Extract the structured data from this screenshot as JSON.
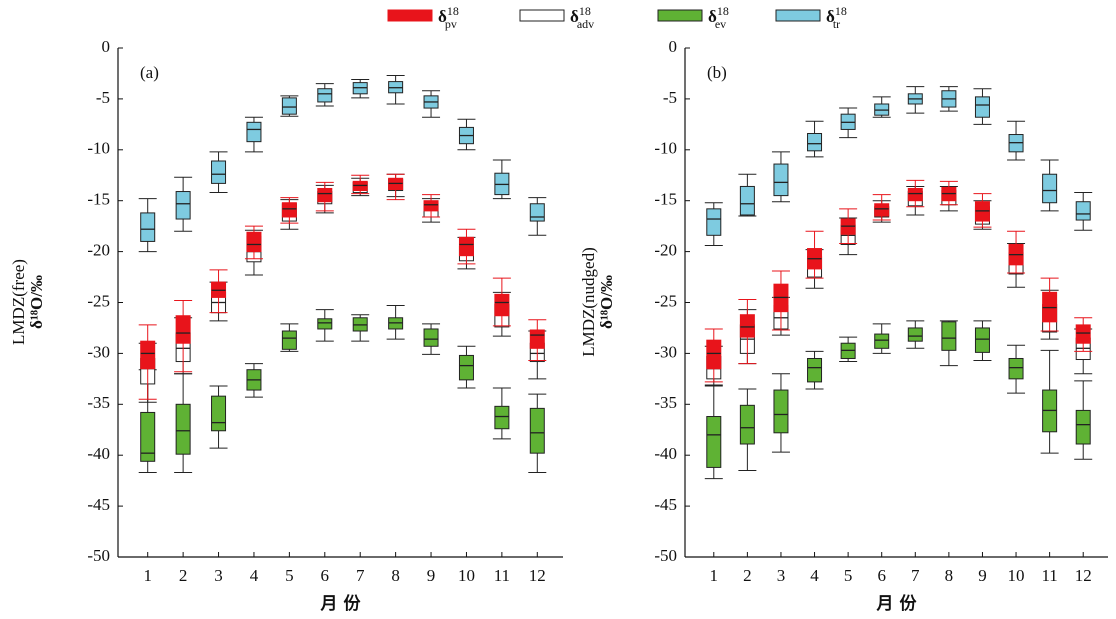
{
  "chart_data": [
    {
      "type": "box",
      "panel_label": "(a)",
      "ylabel": [
        "LMDZ(free)",
        "δ¹⁸O/‰"
      ],
      "xlabel": "月 份",
      "categories": [
        "1",
        "2",
        "3",
        "4",
        "5",
        "6",
        "7",
        "8",
        "9",
        "10",
        "11",
        "12"
      ],
      "ylim": [
        -50,
        0
      ],
      "yticks": [
        0,
        -5,
        -10,
        -15,
        -20,
        -25,
        -30,
        -35,
        -40,
        -45,
        -50
      ],
      "series": [
        {
          "name": "δ",
          "sup": "18",
          "sub": "pv",
          "color": "#e8141b",
          "edgecolor": "#e8141b",
          "whislo": [
            -34.5,
            -31.8,
            -26,
            -20.7,
            -17.2,
            -16,
            -14.3,
            -14.9,
            -16.6,
            -21.2,
            -27.3,
            -30.7
          ],
          "q1": [
            -31.5,
            -29,
            -24.5,
            -20,
            -16.6,
            -15.1,
            -14,
            -13.9,
            -16,
            -20.4,
            -26.3,
            -29.5
          ],
          "median": [
            -30,
            -28,
            -23.8,
            -19.3,
            -15.8,
            -14.3,
            -13.5,
            -13.3,
            -15.4,
            -19.3,
            -25,
            -28.2
          ],
          "q3": [
            -28.8,
            -26.3,
            -23,
            -18.1,
            -15.2,
            -13.8,
            -13.1,
            -12.8,
            -15,
            -18.6,
            -24.2,
            -27.7
          ],
          "whishi": [
            -27.2,
            -24.8,
            -21.8,
            -17.5,
            -14.7,
            -13.2,
            -12.5,
            -12.4,
            -14.4,
            -17.8,
            -22.6,
            -26.7
          ]
        },
        {
          "name": "δ",
          "sup": "18",
          "sub": "adv",
          "color": "#ffffff",
          "edgecolor": "#222222",
          "whislo": [
            -34.8,
            -32,
            -26.8,
            -22.3,
            -17.8,
            -16.2,
            -14.5,
            -14.6,
            -17.1,
            -21.7,
            -28.3,
            -32.5
          ],
          "q1": [
            -33,
            -30.8,
            -26,
            -21,
            -17,
            -15.3,
            -14.2,
            -14,
            -16.6,
            -20.9,
            -27.4,
            -30.8
          ],
          "median": [
            -31.5,
            -29.5,
            -25,
            -20,
            -16.2,
            -14.8,
            -13.8,
            -13.3,
            -15.9,
            -20.3,
            -26,
            -30
          ],
          "q3": [
            -30.5,
            -28,
            -24,
            -18.5,
            -15.3,
            -14.1,
            -13.2,
            -12.9,
            -15.3,
            -19.5,
            -25.2,
            -29
          ],
          "whishi": [
            -29,
            -26.5,
            -23,
            -17.9,
            -14.9,
            -13.5,
            -12.8,
            -12.4,
            -14.8,
            -18.6,
            -24,
            -27.8
          ]
        },
        {
          "name": "δ",
          "sup": "18",
          "sub": "ev",
          "color": "#5fb234",
          "edgecolor": "#222222",
          "whislo": [
            -41.7,
            -41.7,
            -39.3,
            -34.3,
            -29.8,
            -28.8,
            -28.8,
            -28.6,
            -30.1,
            -33.4,
            -38.4,
            -41.7
          ],
          "q1": [
            -40.6,
            -39.9,
            -37.6,
            -33.6,
            -29.6,
            -27.6,
            -27.8,
            -27.6,
            -29.3,
            -32.6,
            -37.4,
            -39.8
          ],
          "median": [
            -39.8,
            -37.6,
            -36.8,
            -32.6,
            -28.5,
            -27,
            -27.2,
            -27,
            -28.6,
            -31.2,
            -36.2,
            -37.8
          ],
          "q3": [
            -35.8,
            -35,
            -34.2,
            -31.6,
            -27.8,
            -26.6,
            -26.5,
            -26.5,
            -27.6,
            -30.2,
            -35.2,
            -35.4
          ],
          "whishi": [
            -31.6,
            -32,
            -33.2,
            -31,
            -27.1,
            -25.7,
            -26.2,
            -25.3,
            -27.1,
            -29.3,
            -33.4,
            -34
          ]
        },
        {
          "name": "δ",
          "sup": "18",
          "sub": "tr",
          "color": "#7ecbe0",
          "edgecolor": "#222222",
          "whislo": [
            -20,
            -18,
            -14.2,
            -10.2,
            -6.7,
            -5.7,
            -4.9,
            -5.5,
            -6.8,
            -10,
            -14.8,
            -18.4
          ],
          "q1": [
            -19,
            -16.8,
            -13.3,
            -9.2,
            -6.5,
            -5.3,
            -4.5,
            -4.4,
            -5.9,
            -9.4,
            -14.4,
            -17
          ],
          "median": [
            -17.8,
            -15.3,
            -12.4,
            -8,
            -5.8,
            -4.5,
            -3.9,
            -3.9,
            -5.3,
            -8.6,
            -13.4,
            -16.6
          ],
          "q3": [
            -16.2,
            -14.1,
            -11.1,
            -7.3,
            -4.9,
            -4,
            -3.4,
            -3.3,
            -4.7,
            -7.8,
            -12.3,
            -15.3
          ],
          "whishi": [
            -14.8,
            -12.7,
            -10.2,
            -6.8,
            -4.7,
            -3.5,
            -3.1,
            -2.7,
            -4.2,
            -7,
            -11,
            -14.7
          ]
        }
      ]
    },
    {
      "type": "box",
      "panel_label": "(b)",
      "ylabel": [
        "LMDZ(nudged)",
        "δ¹⁸O/‰"
      ],
      "xlabel": "月 份",
      "categories": [
        "1",
        "2",
        "3",
        "4",
        "5",
        "6",
        "7",
        "8",
        "9",
        "10",
        "11",
        "12"
      ],
      "ylim": [
        -50,
        0
      ],
      "yticks": [
        0,
        -5,
        -10,
        -15,
        -20,
        -25,
        -30,
        -35,
        -40,
        -45,
        -50
      ],
      "series": [
        {
          "name": "δ",
          "sup": "18",
          "sub": "pv",
          "color": "#e8141b",
          "edgecolor": "#e8141b",
          "whislo": [
            -32.8,
            -31,
            -27.7,
            -22.6,
            -19.2,
            -16.9,
            -15.6,
            -15.4,
            -17.6,
            -22.1,
            -27.8,
            -29.8
          ],
          "q1": [
            -31.5,
            -28.4,
            -25.9,
            -21.7,
            -18.3,
            -16.5,
            -15,
            -15,
            -17,
            -21.3,
            -26.9,
            -29
          ],
          "median": [
            -30,
            -27.4,
            -24.5,
            -20.7,
            -17.5,
            -15.8,
            -14.3,
            -14.3,
            -16,
            -20.3,
            -25.5,
            -28
          ],
          "q3": [
            -28.7,
            -26.2,
            -23.2,
            -19.7,
            -16.8,
            -15.3,
            -13.8,
            -13.7,
            -15.1,
            -19.3,
            -24,
            -27.2
          ],
          "whishi": [
            -27.6,
            -24.7,
            -21.9,
            -18,
            -15.8,
            -14.4,
            -13,
            -13.1,
            -14.3,
            -18,
            -22.6,
            -26.5
          ]
        },
        {
          "name": "δ",
          "sup": "18",
          "sub": "adv",
          "color": "#ffffff",
          "edgecolor": "#222222",
          "whislo": [
            -33.2,
            -31,
            -28.2,
            -23.6,
            -20.3,
            -17.1,
            -16.4,
            -16,
            -17.8,
            -23.5,
            -28.6,
            -32
          ],
          "q1": [
            -32.5,
            -30,
            -27.6,
            -22.5,
            -19.3,
            -16.6,
            -15.5,
            -15.4,
            -17.3,
            -22.2,
            -27.9,
            -30.6
          ],
          "median": [
            -31.5,
            -28.6,
            -26.5,
            -21.4,
            -18.4,
            -16.1,
            -14.6,
            -14.6,
            -16.5,
            -21,
            -26.5,
            -29.5
          ],
          "q3": [
            -30.3,
            -27.2,
            -25.3,
            -20.5,
            -17.4,
            -15.6,
            -14.1,
            -14,
            -15.6,
            -20.1,
            -25.2,
            -28.5
          ],
          "whishi": [
            -29.3,
            -25.7,
            -24.5,
            -19.8,
            -16.7,
            -15,
            -13.6,
            -13.6,
            -15,
            -19.2,
            -23.8,
            -27.6
          ]
        },
        {
          "name": "δ",
          "sup": "18",
          "sub": "ev",
          "color": "#5fb234",
          "edgecolor": "#222222",
          "whislo": [
            -42.3,
            -41.5,
            -39.7,
            -33.5,
            -30.8,
            -30,
            -29.5,
            -31.2,
            -30.7,
            -33.9,
            -39.8,
            -40.4
          ],
          "q1": [
            -41.2,
            -38.9,
            -37.8,
            -32.8,
            -30.5,
            -29.5,
            -28.8,
            -29.7,
            -29.9,
            -32.5,
            -37.7,
            -38.9
          ],
          "median": [
            -38,
            -37.3,
            -36,
            -31.4,
            -29.7,
            -28.7,
            -28.3,
            -28.5,
            -28.6,
            -31.4,
            -35.6,
            -37
          ],
          "q3": [
            -36.2,
            -35.1,
            -33.6,
            -30.5,
            -29,
            -28.1,
            -27.5,
            -26.9,
            -27.5,
            -30.5,
            -33.6,
            -35.6
          ],
          "whishi": [
            -33.1,
            -33.5,
            -32,
            -29.8,
            -28.4,
            -27.1,
            -26.8,
            -26.8,
            -26.8,
            -29.2,
            -29.7,
            -32.7
          ]
        },
        {
          "name": "δ",
          "sup": "18",
          "sub": "tr",
          "color": "#7ecbe0",
          "edgecolor": "#222222",
          "whislo": [
            -19.4,
            -16.5,
            -15.1,
            -10.7,
            -8.8,
            -6.8,
            -6.4,
            -6.2,
            -7.5,
            -11,
            -16,
            -17.9
          ],
          "q1": [
            -18.4,
            -16.4,
            -14.5,
            -10.1,
            -8,
            -6.6,
            -5.5,
            -5.8,
            -6.8,
            -10.2,
            -15.2,
            -16.9
          ],
          "median": [
            -16.8,
            -15.3,
            -13.2,
            -9.4,
            -7.3,
            -6.1,
            -5,
            -5,
            -5.6,
            -9.3,
            -14,
            -16.3
          ],
          "q3": [
            -15.8,
            -13.6,
            -11.4,
            -8.4,
            -6.5,
            -5.5,
            -4.5,
            -4.2,
            -4.8,
            -8.5,
            -12.4,
            -15.1
          ],
          "whishi": [
            -15.2,
            -12.4,
            -10.2,
            -7.2,
            -5.9,
            -4.8,
            -3.8,
            -3.8,
            -4,
            -7.2,
            -11,
            -14.2
          ]
        }
      ]
    }
  ]
}
